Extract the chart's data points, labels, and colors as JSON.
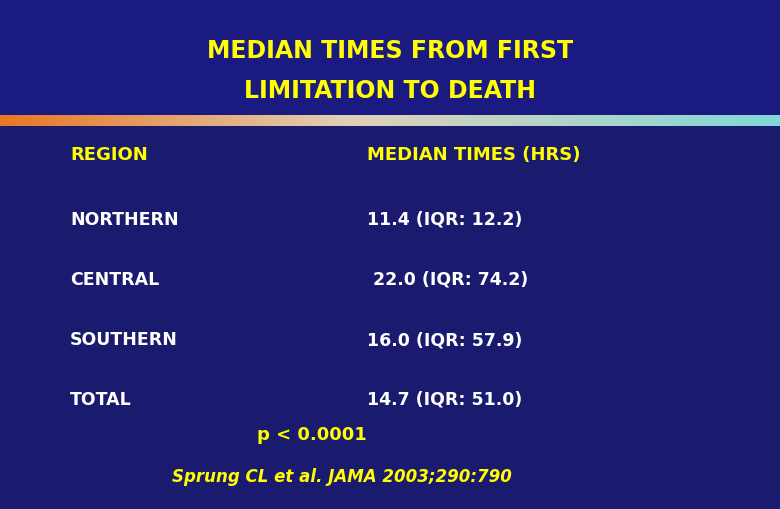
{
  "title_line1": "MEDIAN TIMES FROM FIRST",
  "title_line2": "LIMITATION TO DEATH",
  "title_color": "#FFFF00",
  "background_color": "#1a1a6e",
  "title_bg_color": "#1a1a80",
  "body_bg_color": "#1a1a6e",
  "col1_header": "REGION",
  "col2_header": "MEDIAN TIMES (HRS)",
  "header_text_color": "#FFFF00",
  "rows": [
    {
      "region": "NORTHERN",
      "value": "11.4 (IQR: 12.2)"
    },
    {
      "region": "CENTRAL",
      "value": " 22.0 (IQR: 74.2)"
    },
    {
      "region": "SOUTHERN",
      "value": "16.0 (IQR: 57.9)"
    },
    {
      "region": "TOTAL",
      "value": "14.7 (IQR: 51.0)"
    }
  ],
  "row_text_color": "#FFFFFF",
  "pvalue": "p < 0.0001",
  "pvalue_color": "#FFFF00",
  "citation": "Sprung CL et al. JAMA 2003;290:790",
  "citation_color": "#FFFF00",
  "title_fontsize": 17,
  "header_fontsize": 13,
  "row_fontsize": 12.5,
  "pvalue_fontsize": 13,
  "citation_fontsize": 12
}
